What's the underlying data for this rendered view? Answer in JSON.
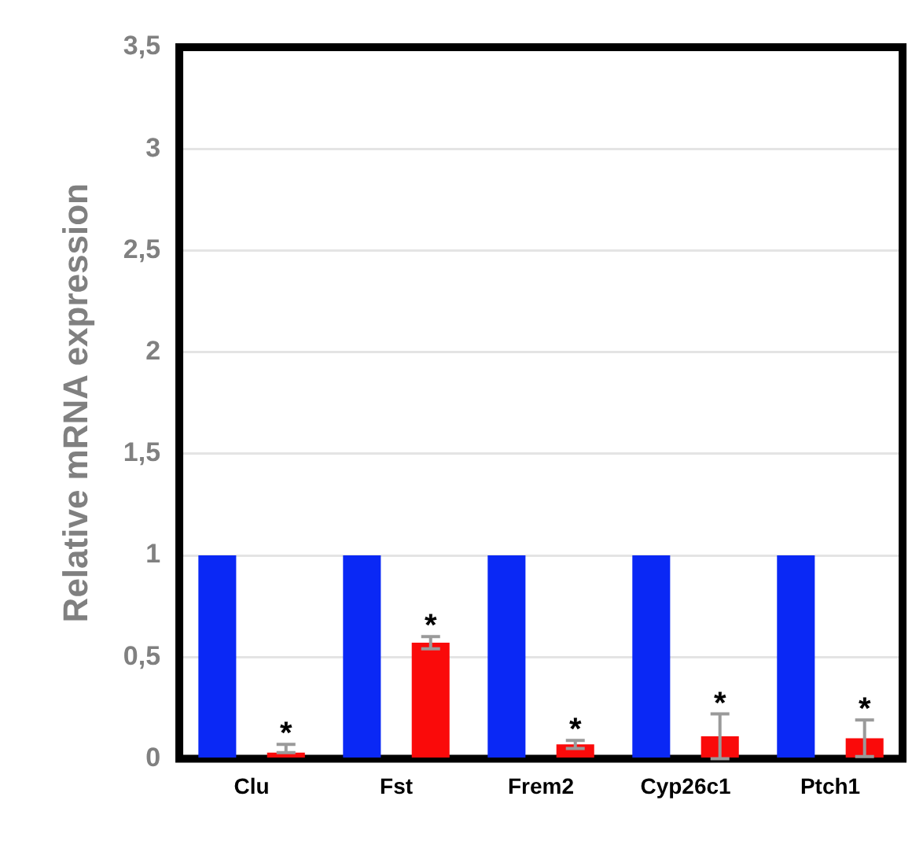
{
  "chart_data": {
    "type": "bar",
    "ylabel": "Relative mRNA expression",
    "categories": [
      "Clu",
      "Fst",
      "Frem2",
      "Cyp26c1",
      "Ptch1"
    ],
    "series": [
      {
        "color": "#0a28f5",
        "values": [
          1,
          1,
          1,
          1,
          1
        ]
      },
      {
        "color": "#fa0a0a",
        "values": [
          0.03,
          0.57,
          0.07,
          0.11,
          0.1
        ],
        "errors": [
          [
            0.03,
            0.07
          ],
          0.03,
          0.02,
          0.11,
          0.09
        ]
      }
    ],
    "ylim": [
      0,
      3.5
    ],
    "yticks": [
      0,
      {
        "value": 0.5,
        "label": "0,5"
      },
      1,
      {
        "value": 1.5,
        "label": "1,5"
      },
      2,
      {
        "value": 2.5,
        "label": "2,5"
      },
      3,
      {
        "value": 3.5,
        "label": "3,5"
      }
    ],
    "grid": "y",
    "legend": false,
    "annotations": [
      "*",
      "*",
      "*",
      "*",
      "*"
    ]
  }
}
